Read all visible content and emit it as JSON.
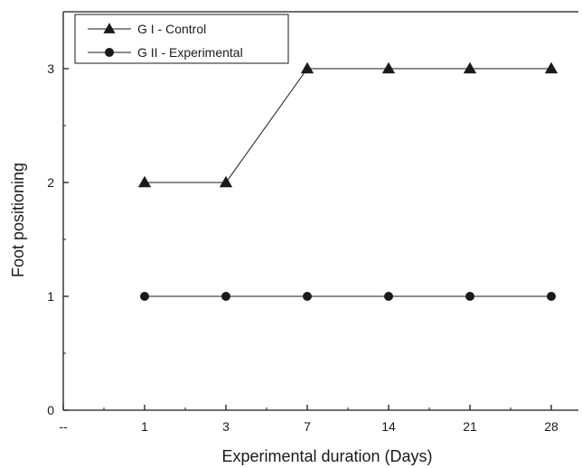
{
  "chart_data": {
    "type": "line",
    "title": "",
    "xlabel": "Experimental duration (Days)",
    "ylabel": "Foot positioning",
    "categories": [
      "--",
      "1",
      "3",
      "7",
      "14",
      "21",
      "28"
    ],
    "ylim": [
      0,
      3.5
    ],
    "yticks": [
      0,
      1,
      2,
      3
    ],
    "grid": false,
    "legend_position": "top-left",
    "series": [
      {
        "name": "G I  - Control",
        "marker": "triangle",
        "color": "#1a1a1a",
        "x": [
          "1",
          "3",
          "7",
          "14",
          "21",
          "28"
        ],
        "values": [
          2,
          2,
          3,
          3,
          3,
          3
        ]
      },
      {
        "name": "G II - Experimental",
        "marker": "circle",
        "color": "#1a1a1a",
        "x": [
          "1",
          "3",
          "7",
          "14",
          "21",
          "28"
        ],
        "values": [
          1,
          1,
          1,
          1,
          1,
          1
        ]
      }
    ]
  }
}
